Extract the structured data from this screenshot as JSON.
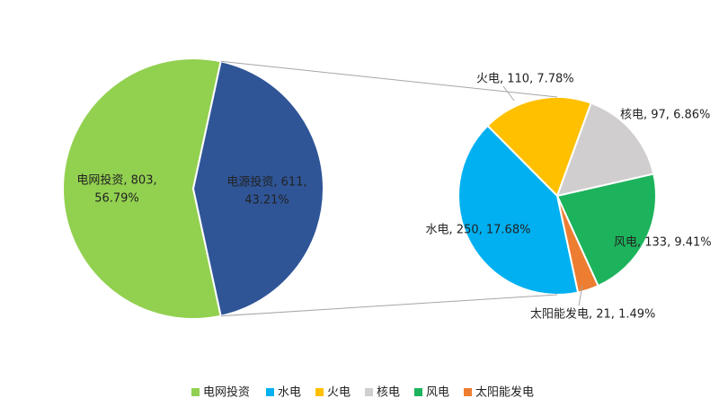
{
  "chart_data": {
    "type": "pie-of-pie",
    "main": {
      "categories": [
        "电网投资",
        "电源投资"
      ],
      "values": [
        803,
        611
      ],
      "colors": [
        "#92d050",
        "#2f5597"
      ],
      "value_labels": [
        [
          "电网投资, 803,",
          "56.79%"
        ],
        [
          "电源投资, 611,",
          "43.21%"
        ]
      ]
    },
    "sub": {
      "categories": [
        "火电",
        "核电",
        "风电",
        "太阳能发电",
        "水电"
      ],
      "values": [
        110,
        97,
        133,
        21,
        250
      ],
      "colors": [
        "#ffc000",
        "#d0cece",
        "#1db35c",
        "#ed7d31",
        "#00b0f0"
      ],
      "value_labels": [
        "火电, 110, 7.78%",
        "核电, 97, 6.86%",
        "风电, 133, 9.41%",
        "太阳能发电, 21, 1.49%",
        "水电, 250, 17.68%"
      ]
    },
    "legend": true
  }
}
